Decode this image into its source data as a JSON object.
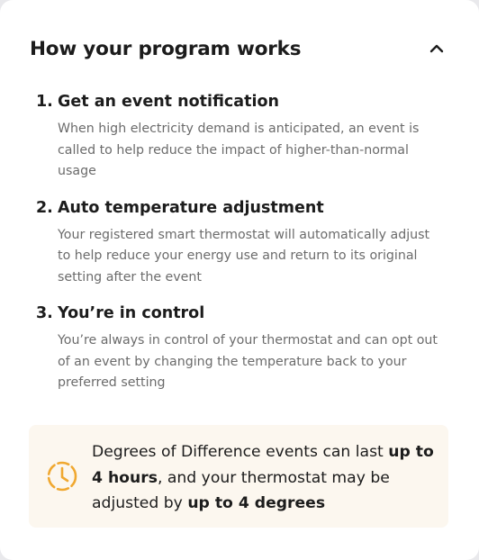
{
  "section": {
    "title": "How your program works",
    "collapse_icon": "chevron-up-icon"
  },
  "steps": [
    {
      "number": "1.",
      "title": "Get an event notification",
      "description": "When high electricity demand is anticipated, an event is called to help reduce the impact of higher-than-normal usage"
    },
    {
      "number": "2.",
      "title": "Auto temperature adjustment",
      "description": "Your registered smart thermostat will automatically adjust to help reduce your energy use and return to its original setting after the event"
    },
    {
      "number": "3.",
      "title": "You’re in control",
      "description": "You’re always in control of your thermostat and can opt out of an event by changing the temperature back to your preferred setting"
    }
  ],
  "info": {
    "icon": "clock-icon",
    "text_part1": "Degrees of Difference events can last ",
    "text_bold1": "up to 4 hours",
    "text_part2": ", and your thermostat may be adjusted by ",
    "text_bold2": "up to 4 degrees",
    "accent_color": "#f0a830",
    "background_color": "#fcf7ef"
  }
}
